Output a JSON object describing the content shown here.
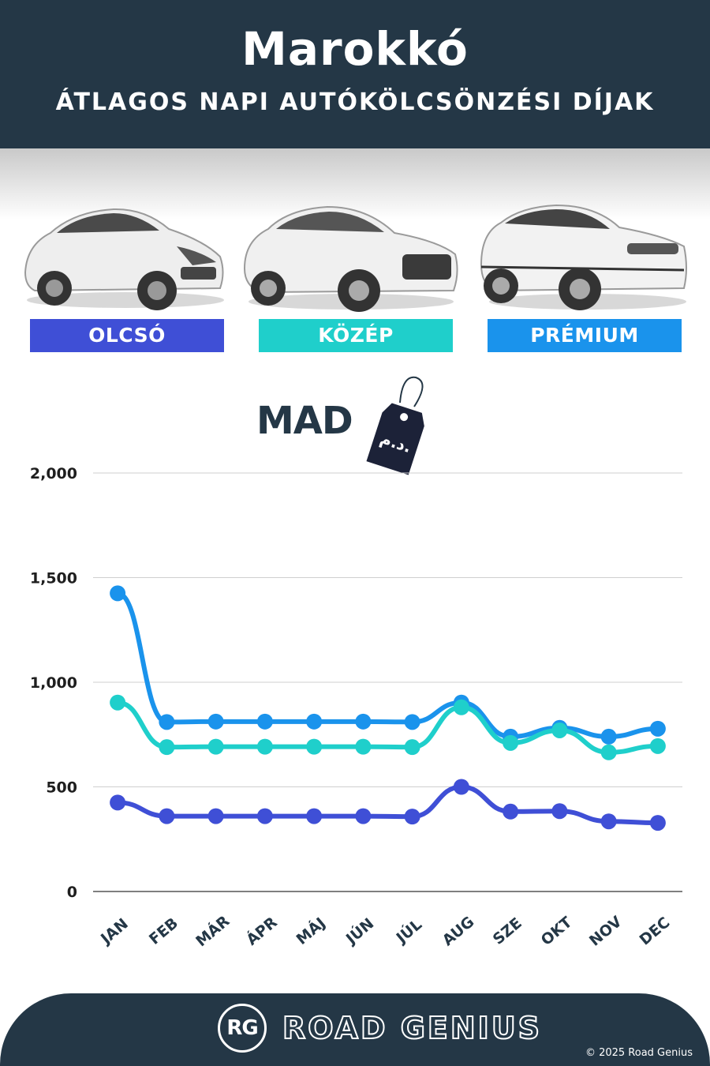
{
  "header": {
    "title": "Marokkó",
    "subtitle": "ÁTLAGOS NAPI AUTÓKÖLCSÖNZÉSI DÍJAK"
  },
  "categories": [
    {
      "label": "OLCSÓ",
      "color": "#3f4fd6",
      "icon": "hatchback-car-icon"
    },
    {
      "label": "KÖZÉP",
      "color": "#1fcfcb",
      "icon": "suv-car-icon"
    },
    {
      "label": "PRÉMIUM",
      "color": "#1a93ec",
      "icon": "luxury-suv-car-icon"
    }
  ],
  "currency": {
    "label": "MAD",
    "tag_text": "د.م."
  },
  "chart_data": {
    "type": "line",
    "categories": [
      "JAN",
      "FEB",
      "MÁR",
      "ÁPR",
      "MÁJ",
      "JÚN",
      "JÚL",
      "AUG",
      "SZE",
      "OKT",
      "NOV",
      "DEC"
    ],
    "series": [
      {
        "name": "PRÉMIUM",
        "color": "#1a93ec",
        "values": [
          1425,
          810,
          812,
          812,
          812,
          812,
          810,
          903,
          740,
          782,
          740,
          778
        ]
      },
      {
        "name": "KÖZÉP",
        "color": "#1fcfcb",
        "values": [
          903,
          690,
          692,
          692,
          692,
          692,
          690,
          880,
          710,
          770,
          665,
          695
        ]
      },
      {
        "name": "OLCSÓ",
        "color": "#3f4fd6",
        "values": [
          425,
          360,
          360,
          360,
          360,
          360,
          358,
          500,
          382,
          384,
          335,
          328
        ]
      }
    ],
    "yticks": [
      0,
      500,
      1000,
      1500,
      2000
    ],
    "ytick_labels": [
      "0",
      "500",
      "1,000",
      "1,500",
      "2,000"
    ],
    "ylim": [
      0,
      2000
    ],
    "grid": true
  },
  "footer": {
    "brand": "ROAD GENIUS",
    "logo": "RG",
    "copyright": "© 2025 Road Genius"
  }
}
